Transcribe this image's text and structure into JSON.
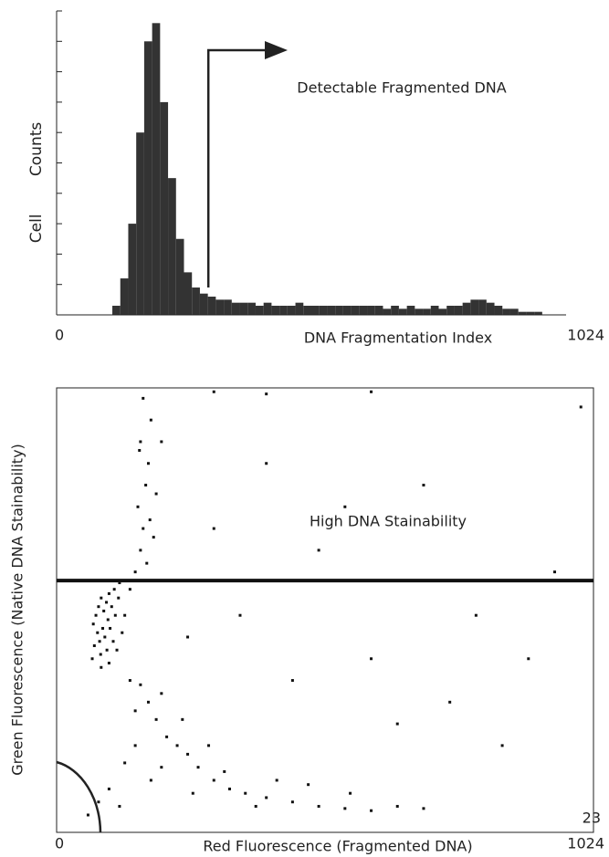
{
  "chart_data": [
    {
      "type": "histogram",
      "ylabel": "Cell Counts",
      "xlabel": "DNA Fragmentation Index",
      "annotation": "Detectable Fragmented DNA",
      "gate_x": 305,
      "color": "#333333",
      "bins": [
        0,
        16,
        32,
        48,
        64,
        80,
        96,
        112,
        128,
        144,
        160,
        176,
        192,
        208,
        224,
        240,
        256,
        272,
        288,
        304,
        320,
        336,
        352,
        368,
        384,
        400,
        416,
        432,
        448,
        464,
        480,
        496,
        512,
        528,
        544,
        560,
        576,
        592,
        608,
        624,
        640,
        656,
        672,
        688,
        704,
        720,
        736,
        752,
        768,
        784,
        800,
        816,
        832,
        848,
        864,
        880,
        896,
        912,
        928,
        944,
        960,
        976,
        992,
        1008,
        1024
      ],
      "values": [
        0,
        0,
        0,
        0,
        0,
        0,
        0,
        3,
        12,
        30,
        60,
        90,
        96,
        70,
        45,
        25,
        14,
        9,
        7,
        6,
        5,
        5,
        4,
        4,
        4,
        3,
        4,
        3,
        3,
        3,
        4,
        3,
        3,
        3,
        3,
        3,
        3,
        3,
        3,
        3,
        3,
        2,
        3,
        2,
        3,
        2,
        2,
        3,
        2,
        3,
        3,
        4,
        5,
        5,
        4,
        3,
        2,
        2,
        1,
        1,
        1,
        0,
        0,
        0
      ],
      "xlim": [
        0,
        1024
      ],
      "xticks": [
        0,
        1024
      ],
      "ylim": [
        0,
        100
      ],
      "yticks": [
        0,
        10,
        20,
        30,
        40,
        50,
        60,
        70,
        80,
        90,
        100
      ]
    },
    {
      "type": "scatter",
      "xlabel": "Red Fluorescence  (Fragmented DNA)",
      "ylabel": "Green Fluorescence  (Native DNA Stainability)",
      "annotation": "High DNA Stainability",
      "gate_y": 580,
      "color": "#111111",
      "x": [
        70,
        75,
        80,
        85,
        90,
        95,
        100,
        78,
        88,
        98,
        105,
        110,
        72,
        82,
        92,
        102,
        112,
        118,
        120,
        68,
        84,
        96,
        108,
        85,
        100,
        115,
        125,
        130,
        140,
        150,
        160,
        165,
        155,
        170,
        175,
        160,
        180,
        165,
        185,
        190,
        172,
        158,
        178,
        160,
        175,
        190,
        200,
        210,
        230,
        250,
        270,
        300,
        330,
        360,
        400,
        450,
        500,
        550,
        600,
        650,
        700,
        140,
        150,
        200,
        260,
        320,
        380,
        420,
        480,
        560,
        240,
        290,
        150,
        180,
        100,
        120,
        60,
        80,
        130,
        300,
        400,
        500,
        700,
        800,
        900,
        750,
        600,
        850,
        950,
        350,
        450,
        650,
        1000,
        250,
        550,
        200,
        400,
        300,
        600
      ],
      "y": [
        480,
        500,
        520,
        540,
        510,
        530,
        550,
        460,
        470,
        490,
        520,
        560,
        430,
        440,
        450,
        470,
        500,
        540,
        575,
        400,
        410,
        420,
        440,
        380,
        390,
        420,
        460,
        500,
        560,
        600,
        650,
        700,
        750,
        800,
        850,
        900,
        950,
        1000,
        680,
        780,
        620,
        880,
        720,
        340,
        300,
        260,
        320,
        220,
        200,
        180,
        150,
        120,
        100,
        90,
        80,
        70,
        60,
        55,
        50,
        60,
        55,
        350,
        280,
        150,
        90,
        140,
        60,
        120,
        110,
        90,
        260,
        200,
        200,
        120,
        100,
        60,
        40,
        70,
        160,
        700,
        850,
        650,
        800,
        500,
        400,
        300,
        400,
        200,
        600,
        500,
        350,
        250,
        980,
        450,
        750,
        900,
        1010,
        1015,
        1015
      ],
      "xlim": [
        0,
        1024
      ],
      "xticks": [
        0,
        1024
      ],
      "ylim": [
        0,
        1024
      ]
    }
  ],
  "page_number": "23"
}
